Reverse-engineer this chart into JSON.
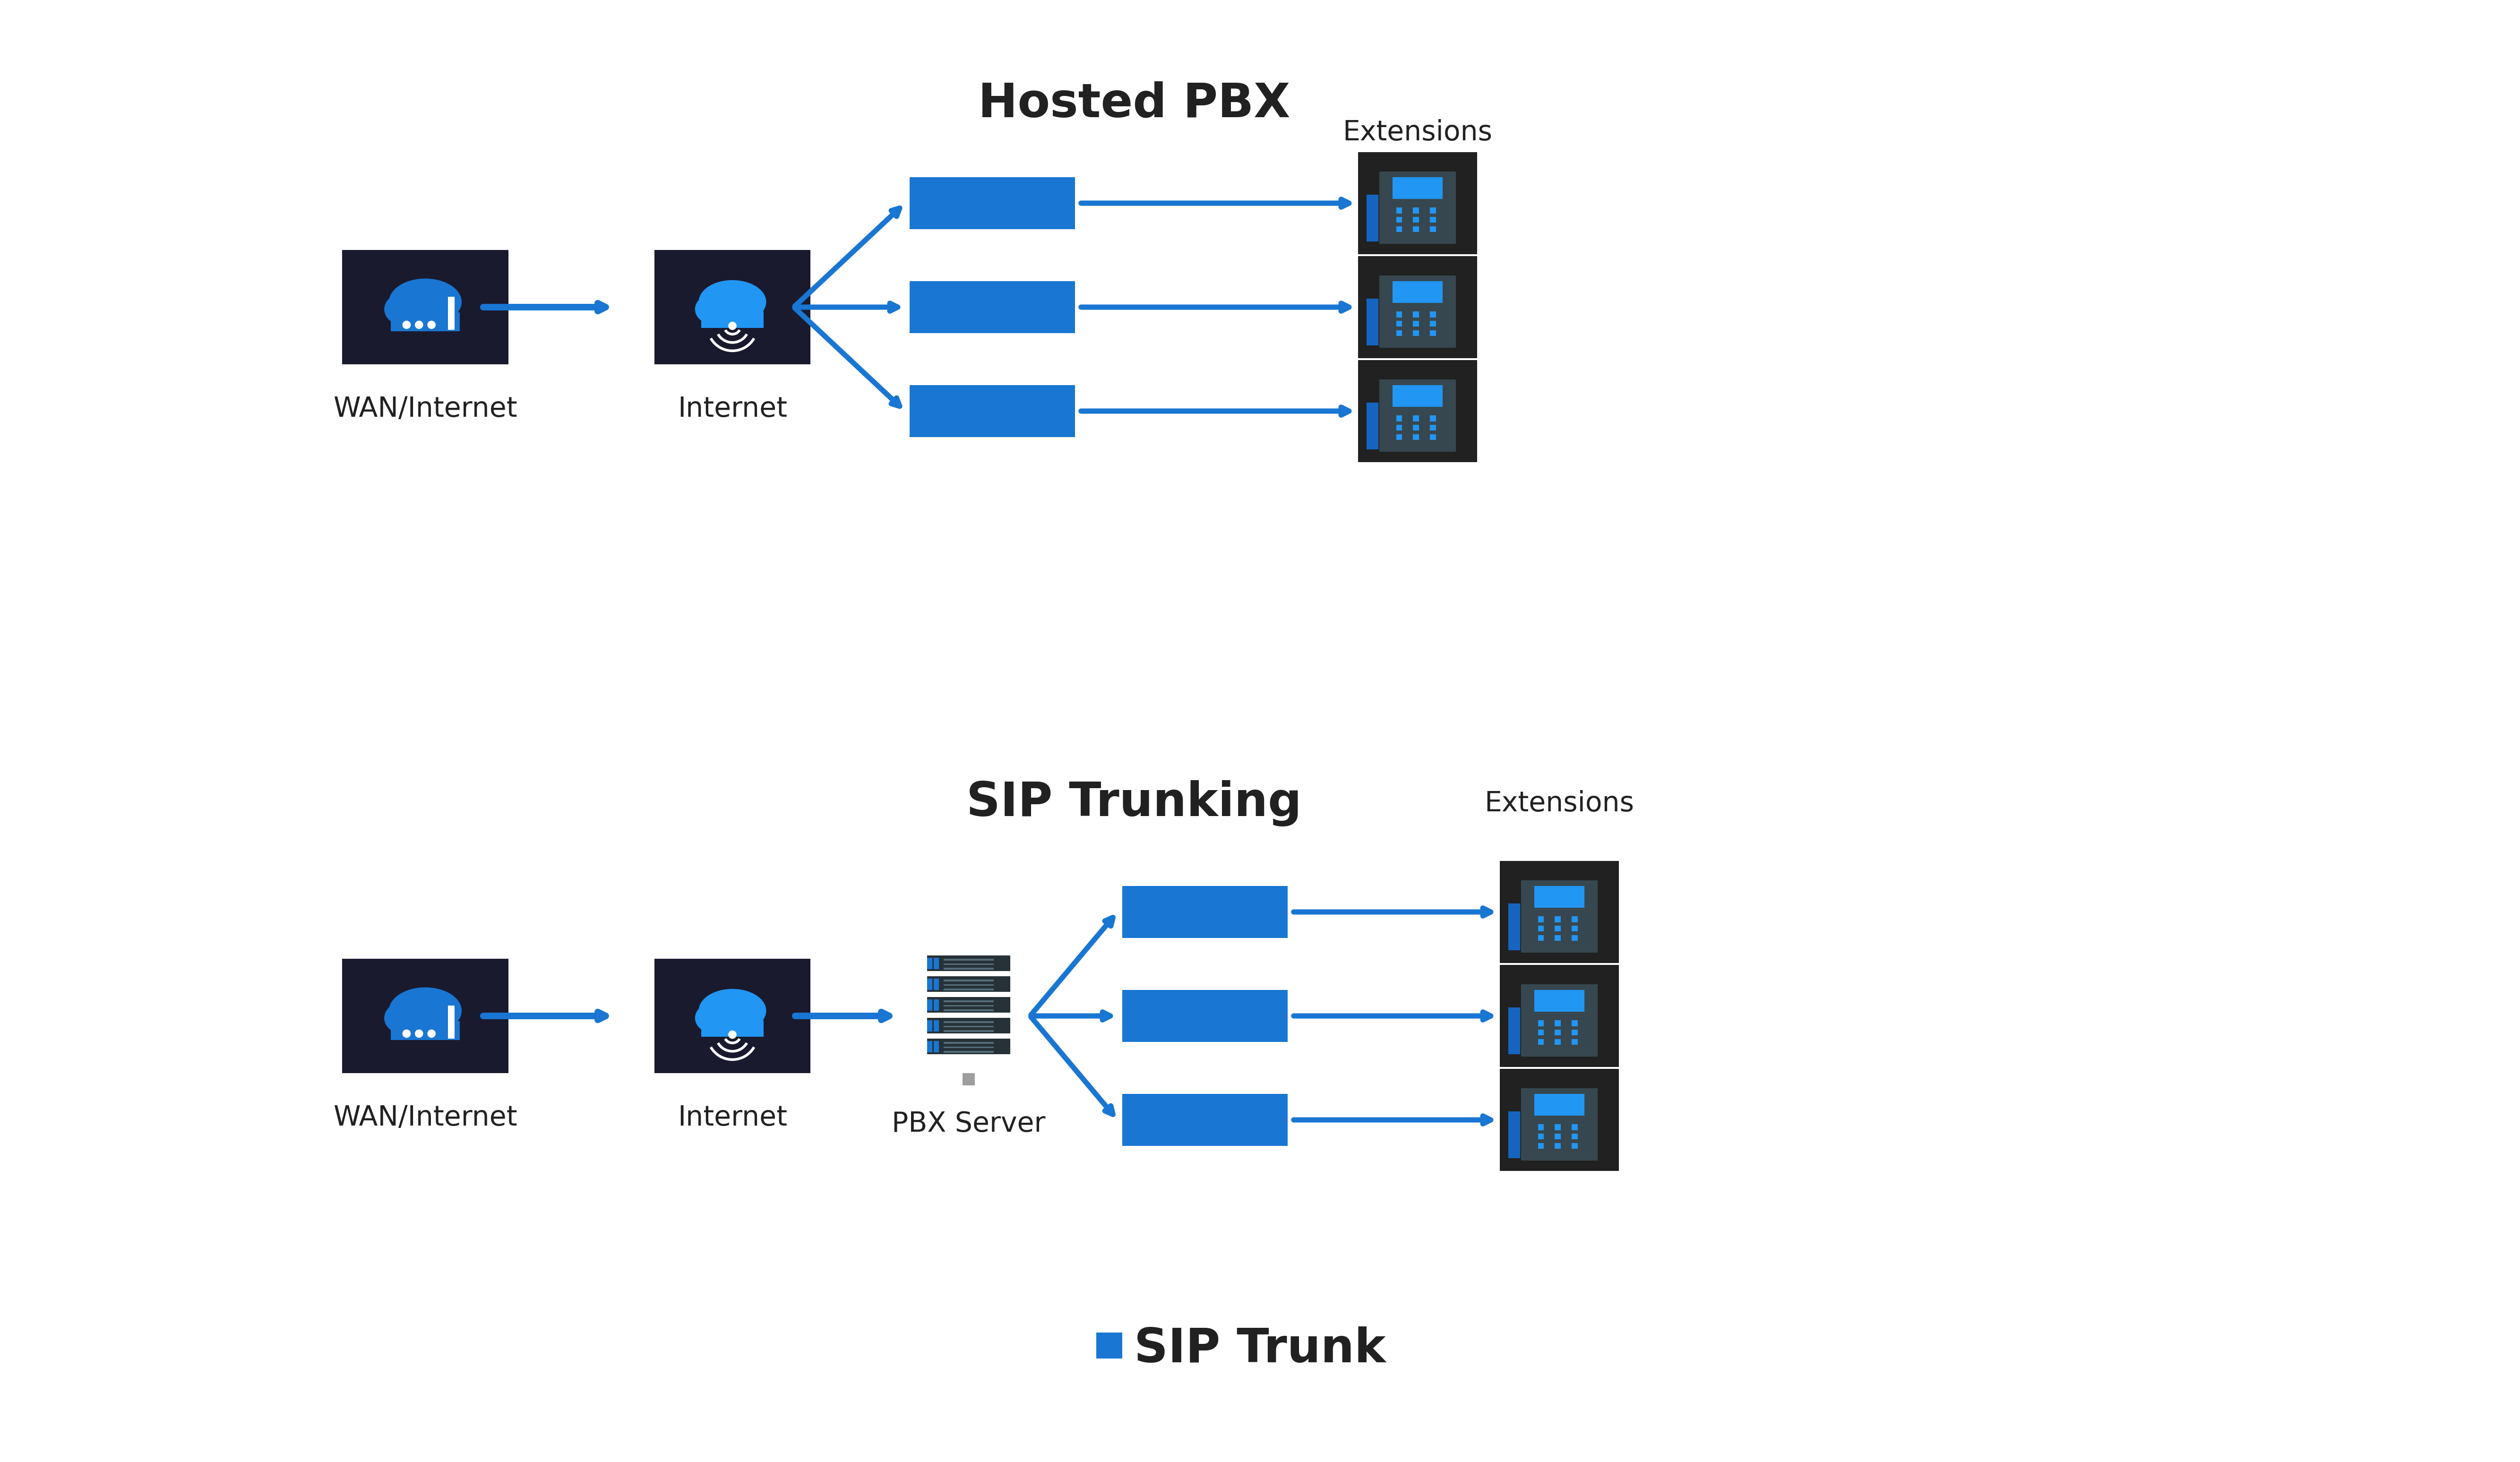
{
  "background_color": "#ffffff",
  "blue_dark": "#1565C0",
  "blue_mid": "#1976D2",
  "blue_light": "#2196F3",
  "dark_bg": "#1a1a2e",
  "dark_icon": "#212121",
  "gray_bg": "#424242",
  "text_color": "#212121",
  "arrow_color": "#1976D2",
  "section1_title": "Hosted PBX",
  "section2_title": "SIP Trunking",
  "label_wan": "WAN/Internet",
  "label_internet_top": "Internet",
  "label_internet_bot": "Internet",
  "label_pbx": "Hosted PBX",
  "label_server": "PBX Server",
  "label_extensions": "Extensions",
  "label_legend": "SIP Trunk",
  "font_size_title": 72,
  "font_size_label": 42,
  "font_size_small": 36
}
